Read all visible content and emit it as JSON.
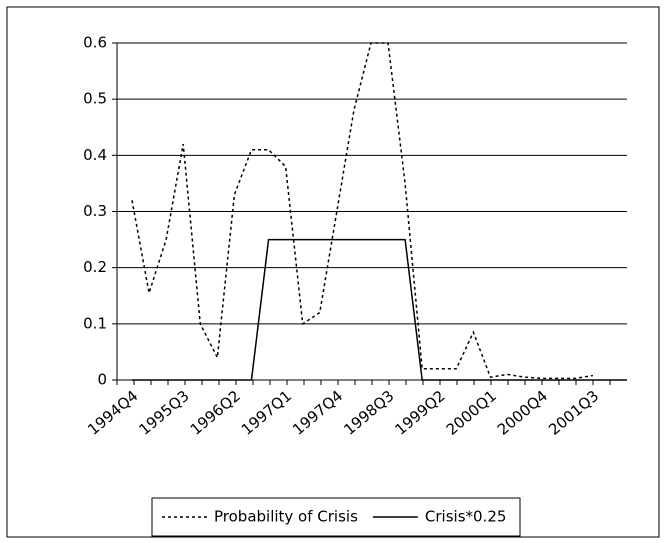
{
  "chart_data": {
    "type": "line",
    "categories": [
      "1994Q4",
      null,
      null,
      "1995Q3",
      null,
      null,
      "1996Q2",
      null,
      null,
      "1997Q1",
      null,
      null,
      "1997Q4",
      null,
      null,
      "1998Q3",
      null,
      null,
      "1999Q2",
      null,
      null,
      "2000Q1",
      null,
      null,
      "2000Q4",
      null,
      null,
      "2001Q3",
      null,
      null
    ],
    "series": [
      {
        "name": "Probability of Crisis",
        "color": "#000000",
        "dash": "dotted",
        "values": [
          0.32,
          0.155,
          0.25,
          0.42,
          0.1,
          0.04,
          0.33,
          0.41,
          0.41,
          0.38,
          0.1,
          0.12,
          0.3,
          0.48,
          0.6,
          0.6,
          0.35,
          0.02,
          0.02,
          0.02,
          0.085,
          0.005,
          0.01,
          0.005,
          0.003,
          0.003,
          0.003,
          0.008,
          null,
          null
        ]
      },
      {
        "name": "Crisis*0.25",
        "color": "#000000",
        "dash": "solid",
        "values": [
          0,
          0,
          0,
          0,
          0,
          0,
          0,
          0,
          0.25,
          0.25,
          0.25,
          0.25,
          0.25,
          0.25,
          0.25,
          0.25,
          0.25,
          0,
          0,
          0,
          0,
          0,
          0,
          0,
          0,
          0,
          0,
          0,
          0,
          0
        ]
      }
    ],
    "ylim": [
      0,
      0.6
    ],
    "yticks": [
      0,
      0.1,
      0.2,
      0.3,
      0.4,
      0.5,
      0.6
    ],
    "grid": true,
    "legend": "bottom"
  }
}
